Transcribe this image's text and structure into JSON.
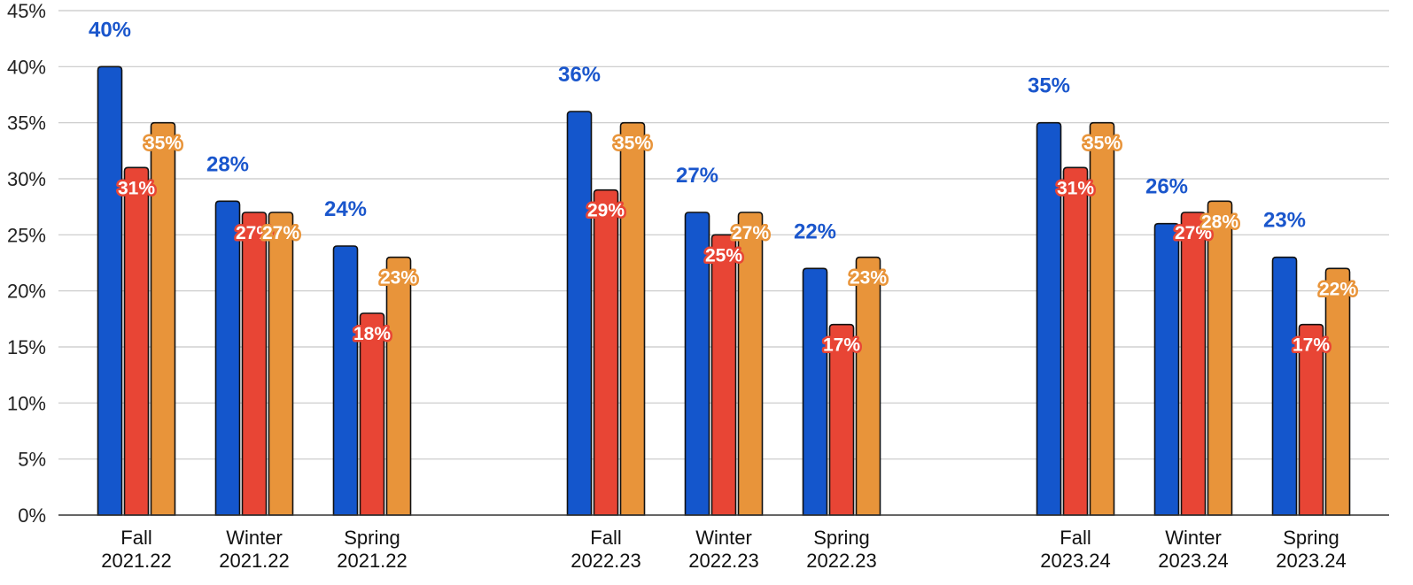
{
  "chart_data": {
    "type": "bar",
    "title": "",
    "xlabel": "",
    "ylabel": "",
    "ylim": [
      0,
      45
    ],
    "ytick_step": 5,
    "ytick_suffix": "%",
    "grid": true,
    "legend": "none",
    "groups": [
      "2021.22",
      "2022.23",
      "2023.24"
    ],
    "categories": [
      [
        "Fall",
        "2021.22"
      ],
      [
        "Winter",
        "2021.22"
      ],
      [
        "Spring",
        "2021.22"
      ],
      [
        "Fall",
        "2022.23"
      ],
      [
        "Winter",
        "2022.23"
      ],
      [
        "Spring",
        "2022.23"
      ],
      [
        "Fall",
        "2023.24"
      ],
      [
        "Winter",
        "2023.24"
      ],
      [
        "Spring",
        "2023.24"
      ]
    ],
    "series": [
      {
        "color": "#1456cc",
        "label_style": "blue-bold",
        "values": [
          40,
          28,
          24,
          36,
          27,
          22,
          35,
          26,
          23
        ]
      },
      {
        "color": "#e84535",
        "label_style": "badge",
        "values": [
          31,
          27,
          18,
          29,
          25,
          17,
          31,
          27,
          17
        ]
      },
      {
        "color": "#e8943a",
        "label_style": "badge",
        "values": [
          35,
          27,
          23,
          35,
          27,
          23,
          35,
          28,
          22
        ]
      }
    ],
    "value_suffix": "%"
  }
}
